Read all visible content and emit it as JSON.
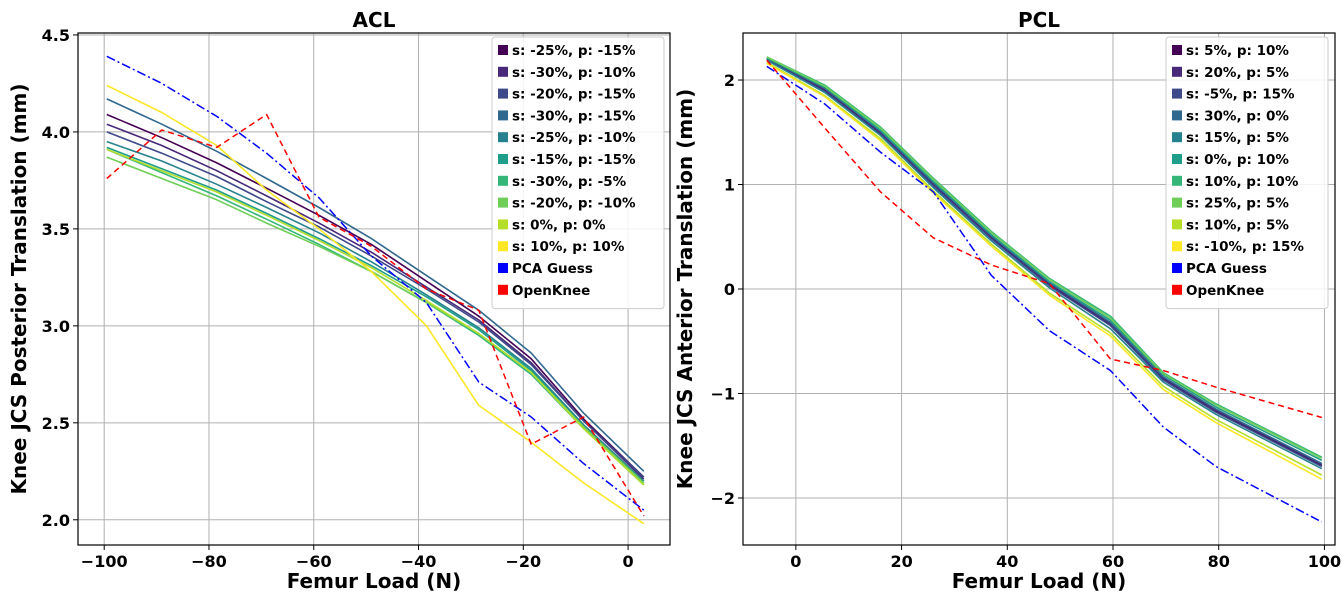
{
  "chart_data": [
    {
      "type": "line",
      "title": "ACL",
      "xlabel": "Femur Load (N)",
      "ylabel": "Knee JCS Posterior Translation (mm)",
      "xlim": [
        -105,
        8
      ],
      "ylim": [
        1.87,
        4.51
      ],
      "xticks": [
        -100,
        -80,
        -60,
        -40,
        -20,
        0
      ],
      "xtick_labels": [
        "−100",
        "−80",
        "−60",
        "−40",
        "−20",
        "0"
      ],
      "yticks": [
        2.0,
        2.5,
        3.0,
        3.5,
        4.0,
        4.5
      ],
      "ytick_labels": [
        "2.0",
        "2.5",
        "3.0",
        "3.5",
        "4.0",
        "4.5"
      ],
      "grid": true,
      "legend_position": "top-right",
      "x": [
        -99.5,
        -89,
        -78.5,
        -69,
        -59,
        -49,
        -38.5,
        -28.5,
        -18.5,
        -8.5,
        3
      ],
      "series": [
        {
          "name": "s: -25%, p: -15%",
          "color": "#440154",
          "style": "solid",
          "values": [
            4.09,
            3.97,
            3.84,
            3.71,
            3.57,
            3.42,
            3.23,
            3.05,
            2.83,
            2.52,
            2.22
          ]
        },
        {
          "name": "s: -30%, p: -10%",
          "color": "#482878",
          "style": "solid",
          "values": [
            4.04,
            3.93,
            3.8,
            3.67,
            3.53,
            3.38,
            3.2,
            3.03,
            2.81,
            2.51,
            2.21
          ]
        },
        {
          "name": "s: -20%, p: -15%",
          "color": "#3e4989",
          "style": "solid",
          "values": [
            4.0,
            3.89,
            3.77,
            3.64,
            3.51,
            3.36,
            3.19,
            3.02,
            2.8,
            2.51,
            2.22
          ]
        },
        {
          "name": "s: -30%, p: -15%",
          "color": "#31688e",
          "style": "solid",
          "values": [
            4.17,
            4.04,
            3.9,
            3.76,
            3.61,
            3.45,
            3.26,
            3.08,
            2.86,
            2.55,
            2.25
          ]
        },
        {
          "name": "s: -25%, p: -10%",
          "color": "#26828e",
          "style": "solid",
          "values": [
            3.95,
            3.85,
            3.73,
            3.61,
            3.48,
            3.33,
            3.16,
            2.99,
            2.78,
            2.49,
            2.2
          ]
        },
        {
          "name": "s: -15%, p: -15%",
          "color": "#1f9e89",
          "style": "solid",
          "values": [
            3.92,
            3.81,
            3.7,
            3.58,
            3.45,
            3.31,
            3.15,
            2.98,
            2.77,
            2.48,
            2.19
          ]
        },
        {
          "name": "s: -30%, p: -5%",
          "color": "#35b779",
          "style": "solid",
          "values": [
            3.91,
            3.79,
            3.67,
            3.55,
            3.42,
            3.28,
            3.12,
            2.95,
            2.75,
            2.47,
            2.18
          ]
        },
        {
          "name": "s: -20%, p: -10%",
          "color": "#6ece58",
          "style": "solid",
          "values": [
            3.87,
            3.76,
            3.65,
            3.53,
            3.41,
            3.28,
            3.12,
            2.96,
            2.76,
            2.48,
            2.19
          ]
        },
        {
          "name": "s: 0%, p: 0%",
          "color": "#b5de2b",
          "style": "solid",
          "values": [
            3.91,
            3.8,
            3.69,
            3.57,
            3.44,
            3.3,
            3.13,
            2.96,
            2.76,
            2.47,
            2.18
          ]
        },
        {
          "name": "s: 10%, p: 10%",
          "color": "#fde725",
          "style": "solid",
          "values": [
            4.24,
            4.1,
            3.93,
            3.7,
            3.5,
            3.28,
            3.0,
            2.59,
            2.4,
            2.19,
            1.98
          ]
        },
        {
          "name": "PCA Guess",
          "color": "#0000ff",
          "style": "dashdot",
          "values": [
            4.39,
            4.25,
            4.08,
            3.89,
            3.66,
            3.36,
            3.12,
            2.71,
            2.53,
            2.29,
            2.05
          ]
        },
        {
          "name": "OpenKnee",
          "color": "#ff0000",
          "style": "dashed",
          "values": [
            3.76,
            4.01,
            3.92,
            4.09,
            3.56,
            3.41,
            3.19,
            3.08,
            2.39,
            2.53,
            2.02
          ]
        }
      ]
    },
    {
      "type": "line",
      "title": "PCL",
      "xlabel": "Femur Load (N)",
      "ylabel": "Knee JCS Anterior Translation (mm)",
      "xlim": [
        -10,
        102
      ],
      "ylim": [
        -2.45,
        2.45
      ],
      "xticks": [
        0,
        20,
        40,
        60,
        80,
        100
      ],
      "xtick_labels": [
        "0",
        "20",
        "40",
        "60",
        "80",
        "100"
      ],
      "yticks": [
        -2,
        -1,
        0,
        1,
        2
      ],
      "ytick_labels": [
        "−2",
        "−1",
        "0",
        "1",
        "2"
      ],
      "grid": true,
      "legend_position": "top-right",
      "x": [
        -5.5,
        5.5,
        16,
        26,
        37,
        48,
        59.5,
        69.5,
        79.5,
        99.5
      ],
      "series": [
        {
          "name": "s: 5%, p: 10%",
          "color": "#440154",
          "style": "solid",
          "values": [
            2.2,
            1.9,
            1.49,
            1.0,
            0.49,
            0.04,
            -0.34,
            -0.86,
            -1.17,
            -1.69
          ]
        },
        {
          "name": "s: 20%, p: 5%",
          "color": "#482878",
          "style": "solid",
          "values": [
            2.2,
            1.91,
            1.5,
            1.01,
            0.5,
            0.05,
            -0.33,
            -0.85,
            -1.16,
            -1.68
          ]
        },
        {
          "name": "s: -5%, p: 15%",
          "color": "#3e4989",
          "style": "solid",
          "values": [
            2.19,
            1.89,
            1.48,
            0.99,
            0.48,
            0.03,
            -0.35,
            -0.87,
            -1.18,
            -1.7
          ]
        },
        {
          "name": "s: 30%, p: 0%",
          "color": "#31688e",
          "style": "solid",
          "values": [
            2.21,
            1.92,
            1.51,
            1.02,
            0.51,
            0.06,
            -0.32,
            -0.84,
            -1.15,
            -1.67
          ]
        },
        {
          "name": "s: 15%, p: 5%",
          "color": "#26828e",
          "style": "solid",
          "values": [
            2.19,
            1.88,
            1.47,
            0.97,
            0.46,
            0.01,
            -0.38,
            -0.89,
            -1.2,
            -1.72
          ]
        },
        {
          "name": "s: 0%, p: 10%",
          "color": "#1f9e89",
          "style": "solid",
          "values": [
            2.21,
            1.93,
            1.52,
            1.03,
            0.52,
            0.07,
            -0.3,
            -0.82,
            -1.13,
            -1.64
          ]
        },
        {
          "name": "s: 10%, p: 10%",
          "color": "#35b779",
          "style": "solid",
          "values": [
            2.22,
            1.95,
            1.55,
            1.06,
            0.55,
            0.1,
            -0.26,
            -0.8,
            -1.1,
            -1.61
          ]
        },
        {
          "name": "s: 25%, p: 5%",
          "color": "#6ece58",
          "style": "solid",
          "values": [
            2.22,
            1.94,
            1.54,
            1.05,
            0.54,
            0.09,
            -0.28,
            -0.81,
            -1.11,
            -1.62
          ]
        },
        {
          "name": "s: 10%, p: 5%",
          "color": "#b5de2b",
          "style": "solid",
          "values": [
            2.17,
            1.85,
            1.44,
            0.94,
            0.43,
            -0.04,
            -0.42,
            -0.93,
            -1.25,
            -1.78
          ]
        },
        {
          "name": "s: -10%, p: 15%",
          "color": "#fde725",
          "style": "solid",
          "values": [
            2.16,
            1.84,
            1.42,
            0.92,
            0.41,
            -0.06,
            -0.45,
            -0.96,
            -1.28,
            -1.82
          ]
        },
        {
          "name": "PCA Guess",
          "color": "#0000ff",
          "style": "dashdot",
          "values": [
            2.13,
            1.77,
            1.31,
            0.93,
            0.13,
            -0.4,
            -0.78,
            -1.32,
            -1.7,
            -2.23
          ]
        },
        {
          "name": "OpenKnee",
          "color": "#ff0000",
          "style": "dashed",
          "values": [
            2.19,
            1.54,
            0.93,
            0.49,
            0.23,
            0.05,
            -0.67,
            -0.78,
            -0.94,
            -1.23
          ]
        }
      ]
    }
  ]
}
